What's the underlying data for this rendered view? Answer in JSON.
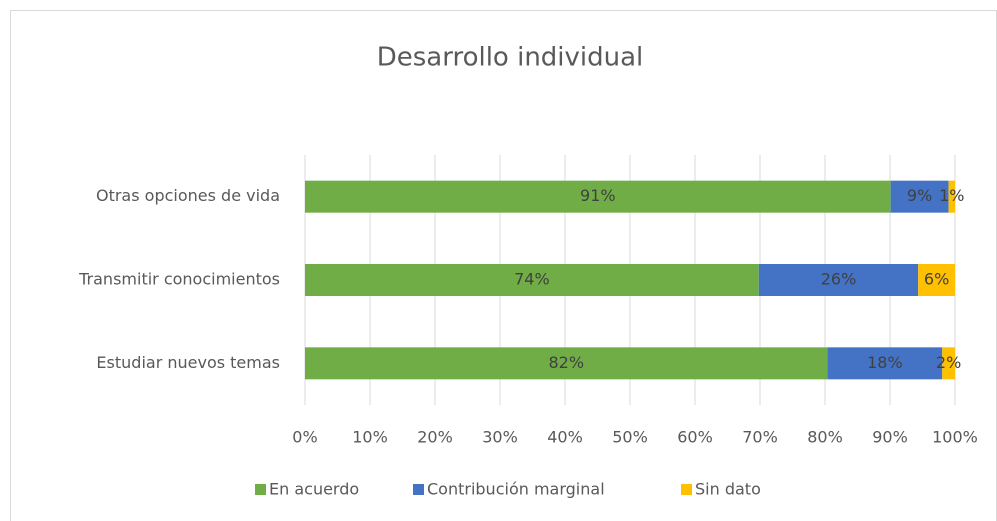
{
  "chart_data": {
    "type": "bar",
    "orientation": "horizontal",
    "stack": "percent",
    "title": "Desarrollo individual",
    "categories": [
      "Otras opciones de vida",
      "Transmitir conocimientos",
      "Estudiar nuevos temas"
    ],
    "series": [
      {
        "name": "En acuerdo",
        "color": "#70ad47",
        "values": [
          91,
          74,
          82
        ],
        "value_labels": [
          "91%",
          "74%",
          "82%"
        ]
      },
      {
        "name": "Contribución marginal",
        "color": "#4472c4",
        "values": [
          9,
          26,
          18
        ],
        "value_labels": [
          "9%",
          "26%",
          "18%"
        ]
      },
      {
        "name": "Sin dato",
        "color": "#ffc000",
        "values": [
          1,
          6,
          2
        ],
        "value_labels": [
          "1%",
          "6%",
          "2%"
        ]
      }
    ],
    "xlim": [
      0,
      100
    ],
    "xticks": [
      {
        "value": 0,
        "label": "0%"
      },
      {
        "value": 10,
        "label": "10%"
      },
      {
        "value": 20,
        "label": "20%"
      },
      {
        "value": 30,
        "label": "30%"
      },
      {
        "value": 40,
        "label": "40%"
      },
      {
        "value": 50,
        "label": "50%"
      },
      {
        "value": 60,
        "label": "60%"
      },
      {
        "value": 70,
        "label": "70%"
      },
      {
        "value": 80,
        "label": "80%"
      },
      {
        "value": 90,
        "label": "90%"
      },
      {
        "value": 100,
        "label": "100%"
      }
    ],
    "grid": true,
    "legend": "bottom"
  }
}
